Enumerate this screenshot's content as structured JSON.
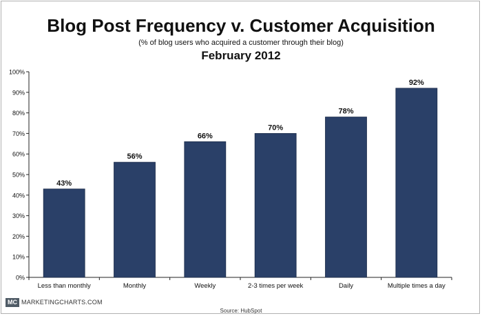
{
  "title": "Blog Post Frequency v. Customer Acquisition",
  "subtitle": "(% of blog users who acquired a customer through their blog)",
  "subtitle2": "February 2012",
  "brand": {
    "logo": "MC",
    "name": "MARKETINGCHARTS.COM"
  },
  "source": "Source: HubSpot",
  "colors": {
    "bar": "#2a4068",
    "axis": "#222222",
    "text": "#111111"
  },
  "chart_data": {
    "type": "bar",
    "title": "Blog Post Frequency v. Customer Acquisition",
    "categories": [
      "Less than monthly",
      "Monthly",
      "Weekly",
      "2-3 times per week",
      "Daily",
      "Multiple times a day"
    ],
    "values": [
      43,
      56,
      66,
      70,
      78,
      92
    ],
    "value_labels": [
      "43%",
      "56%",
      "66%",
      "70%",
      "78%",
      "92%"
    ],
    "ylim": [
      0,
      100
    ],
    "yticks": [
      "0%",
      "10%",
      "20%",
      "30%",
      "40%",
      "50%",
      "60%",
      "70%",
      "80%",
      "90%",
      "100%"
    ],
    "xlabel": "",
    "ylabel": "",
    "grid": false,
    "legend": "none"
  }
}
